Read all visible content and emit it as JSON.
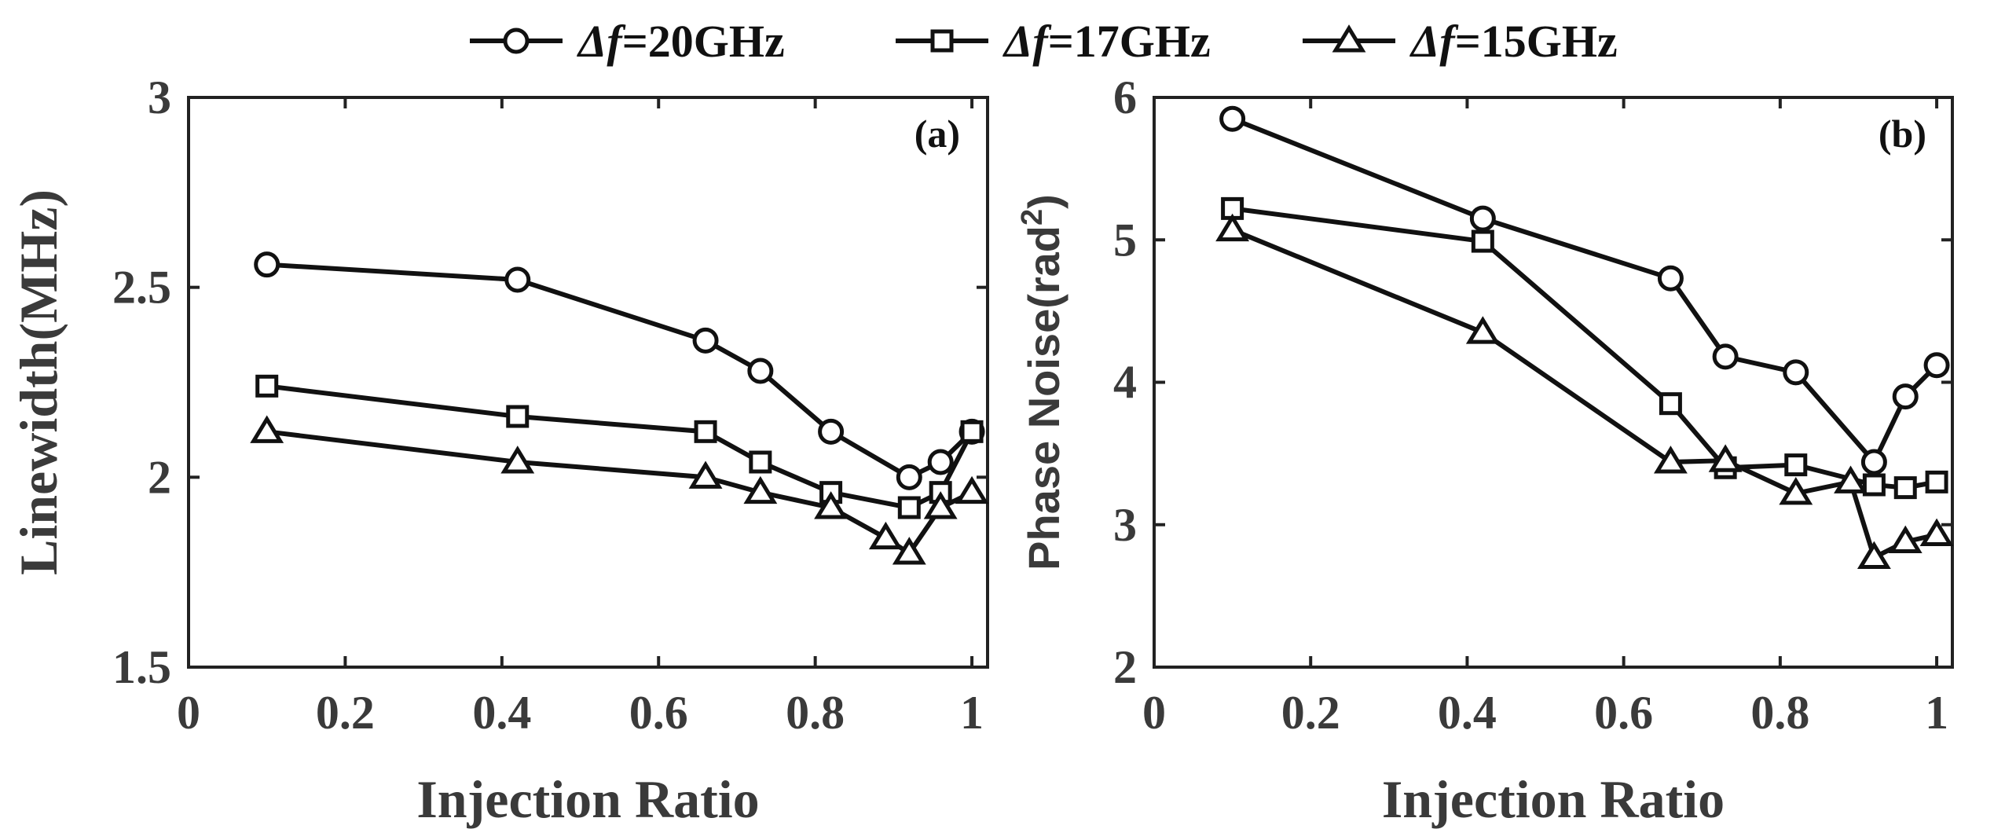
{
  "legend": {
    "entries": [
      {
        "prefix": "Δf",
        "label": "=20GHz",
        "marker": "circle"
      },
      {
        "prefix": "Δf",
        "label": "=17GHz",
        "marker": "square"
      },
      {
        "prefix": "Δf",
        "label": "=15GHz",
        "marker": "triangle"
      }
    ]
  },
  "chart_data": [
    {
      "type": "line",
      "panel_label": "(a)",
      "xlabel": "Injection Ratio",
      "ylabel": "Linewidth(MHz)",
      "xlim": [
        0,
        1.02
      ],
      "ylim": [
        1.5,
        3
      ],
      "xticks": [
        0,
        0.2,
        0.4,
        0.6,
        0.8,
        1
      ],
      "xtick_labels": [
        "0",
        "0.2",
        "0.4",
        "0.6",
        "0.8",
        "1"
      ],
      "yticks": [
        1.5,
        2,
        2.5,
        3
      ],
      "ytick_labels": [
        "1.5",
        "2",
        "2.5",
        "3"
      ],
      "series": [
        {
          "name": "Δf=20GHz",
          "marker": "circle",
          "x": [
            0.1,
            0.42,
            0.66,
            0.73,
            0.82,
            0.92,
            0.96,
            1.0
          ],
          "y": [
            2.56,
            2.52,
            2.36,
            2.28,
            2.12,
            2.0,
            2.04,
            2.12
          ]
        },
        {
          "name": "Δf=17GHz",
          "marker": "square",
          "x": [
            0.1,
            0.42,
            0.66,
            0.73,
            0.82,
            0.92,
            0.96,
            1.0
          ],
          "y": [
            2.24,
            2.16,
            2.12,
            2.04,
            1.96,
            1.92,
            1.96,
            2.12
          ]
        },
        {
          "name": "Δf=15GHz",
          "marker": "triangle",
          "x": [
            0.1,
            0.42,
            0.66,
            0.73,
            0.82,
            0.89,
            0.92,
            0.96,
            1.0
          ],
          "y": [
            2.12,
            2.04,
            2.0,
            1.96,
            1.92,
            1.84,
            1.8,
            1.92,
            1.96
          ]
        }
      ]
    },
    {
      "type": "line",
      "panel_label": "(b)",
      "xlabel": "Injection Ratio",
      "ylabel": "Phase Noise(rad",
      "ylabel_sup": "2",
      "ylabel_tail": ")",
      "xlim": [
        0,
        1.02
      ],
      "ylim": [
        2,
        6
      ],
      "xticks": [
        0,
        0.2,
        0.4,
        0.6,
        0.8,
        1
      ],
      "xtick_labels": [
        "0",
        "0.2",
        "0.4",
        "0.6",
        "0.8",
        "1"
      ],
      "yticks": [
        2,
        3,
        4,
        5,
        6
      ],
      "ytick_labels": [
        "2",
        "3",
        "4",
        "5",
        "6"
      ],
      "series": [
        {
          "name": "Δf=20GHz",
          "marker": "circle",
          "x": [
            0.1,
            0.42,
            0.66,
            0.73,
            0.82,
            0.92,
            0.96,
            1.0
          ],
          "y": [
            5.85,
            5.15,
            4.73,
            4.18,
            4.07,
            3.44,
            3.9,
            4.12
          ]
        },
        {
          "name": "Δf=17GHz",
          "marker": "square",
          "x": [
            0.1,
            0.42,
            0.66,
            0.73,
            0.82,
            0.92,
            0.96,
            1.0
          ],
          "y": [
            5.22,
            4.99,
            3.85,
            3.4,
            3.42,
            3.28,
            3.26,
            3.3
          ]
        },
        {
          "name": "Δf=15GHz",
          "marker": "triangle",
          "x": [
            0.1,
            0.42,
            0.66,
            0.73,
            0.82,
            0.89,
            0.92,
            0.96,
            1.0
          ],
          "y": [
            5.07,
            4.35,
            3.44,
            3.45,
            3.22,
            3.3,
            2.77,
            2.88,
            2.93
          ]
        }
      ]
    }
  ]
}
